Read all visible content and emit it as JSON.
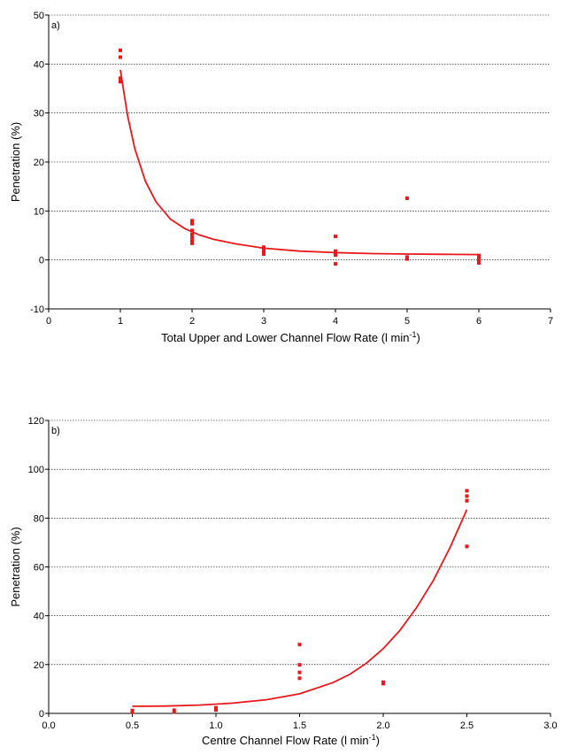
{
  "chart_data": [
    {
      "type": "scatter",
      "panel_label": "a)",
      "xlabel": "Total Upper and Lower Channel Flow Rate (l min",
      "xlabel_sup": "-1",
      "xlabel_suffix": ")",
      "ylabel": "Penetration (%)",
      "xlim": [
        0,
        7
      ],
      "ylim": [
        -10,
        50
      ],
      "xticks": [
        0,
        1,
        2,
        3,
        4,
        5,
        6,
        7
      ],
      "xtick_labels": [
        "0",
        "1",
        "2",
        "3",
        "4",
        "5",
        "6",
        "7"
      ],
      "yticks": [
        -10,
        0,
        10,
        20,
        30,
        40,
        50
      ],
      "ytick_labels": [
        "-10",
        "0",
        "10",
        "20",
        "30",
        "40",
        "50"
      ],
      "grid": "horizontal dotted",
      "color": "#e8181c",
      "points": [
        [
          1,
          42.8
        ],
        [
          1,
          41.4
        ],
        [
          1,
          37.1
        ],
        [
          1,
          36.4
        ],
        [
          2,
          8.0
        ],
        [
          2,
          7.4
        ],
        [
          2,
          6.0
        ],
        [
          2,
          5.2
        ],
        [
          2,
          4.5
        ],
        [
          2,
          3.8
        ],
        [
          2,
          3.4
        ],
        [
          3,
          2.6
        ],
        [
          3,
          2.1
        ],
        [
          3,
          1.6
        ],
        [
          3,
          1.2
        ],
        [
          4,
          4.8
        ],
        [
          4,
          1.8
        ],
        [
          4,
          1.3
        ],
        [
          4,
          1.0
        ],
        [
          4,
          -0.8
        ],
        [
          5,
          12.6
        ],
        [
          5,
          0.6
        ],
        [
          5,
          0.2
        ],
        [
          6,
          0.9
        ],
        [
          6,
          0.5
        ],
        [
          6,
          0.1
        ],
        [
          6,
          -0.3
        ],
        [
          6,
          -0.6
        ]
      ],
      "fit_curve": {
        "x": [
          1.0,
          1.1,
          1.2,
          1.35,
          1.5,
          1.7,
          1.9,
          2.1,
          2.3,
          2.6,
          3.0,
          3.5,
          4.0,
          4.5,
          5.0,
          5.5,
          6.0
        ],
        "y": [
          38.8,
          29.5,
          22.8,
          16.0,
          11.8,
          8.3,
          6.4,
          5.1,
          4.2,
          3.3,
          2.4,
          1.8,
          1.5,
          1.3,
          1.2,
          1.15,
          1.1
        ]
      }
    },
    {
      "type": "scatter",
      "panel_label": "b)",
      "xlabel": "Centre Channel Flow Rate (l min",
      "xlabel_sup": "-1",
      "xlabel_suffix": ")",
      "ylabel": "Penetration (%)",
      "xlim": [
        0.0,
        3.0
      ],
      "ylim": [
        0,
        120
      ],
      "xticks": [
        0.0,
        0.5,
        1.0,
        1.5,
        2.0,
        2.5,
        3.0
      ],
      "xtick_labels": [
        "0.0",
        "0.5",
        "1.0",
        "1.5",
        "2.0",
        "2.5",
        "3.0"
      ],
      "yticks": [
        0,
        20,
        40,
        60,
        80,
        100,
        120
      ],
      "ytick_labels": [
        "0",
        "20",
        "40",
        "60",
        "80",
        "100",
        "120"
      ],
      "grid": "horizontal dotted",
      "color": "#e8181c",
      "points": [
        [
          0.5,
          1.2
        ],
        [
          0.5,
          0.5
        ],
        [
          0.75,
          1.3
        ],
        [
          0.75,
          0.6
        ],
        [
          1.0,
          2.3
        ],
        [
          1.0,
          1.4
        ],
        [
          1.5,
          28.2
        ],
        [
          1.5,
          19.9
        ],
        [
          1.5,
          16.8
        ],
        [
          1.5,
          14.4
        ],
        [
          2.0,
          12.8
        ],
        [
          2.0,
          12.2
        ],
        [
          2.5,
          91.2
        ],
        [
          2.5,
          89.0
        ],
        [
          2.5,
          87.1
        ],
        [
          2.5,
          68.4
        ]
      ],
      "fit_curve": {
        "x": [
          0.5,
          0.7,
          0.9,
          1.1,
          1.3,
          1.5,
          1.7,
          1.8,
          1.9,
          2.0,
          2.1,
          2.2,
          2.3,
          2.4,
          2.5
        ],
        "y": [
          2.9,
          3.0,
          3.4,
          4.2,
          5.6,
          8.0,
          12.6,
          16.0,
          20.6,
          26.5,
          34.0,
          43.4,
          54.5,
          68.0,
          83.5
        ]
      }
    }
  ]
}
